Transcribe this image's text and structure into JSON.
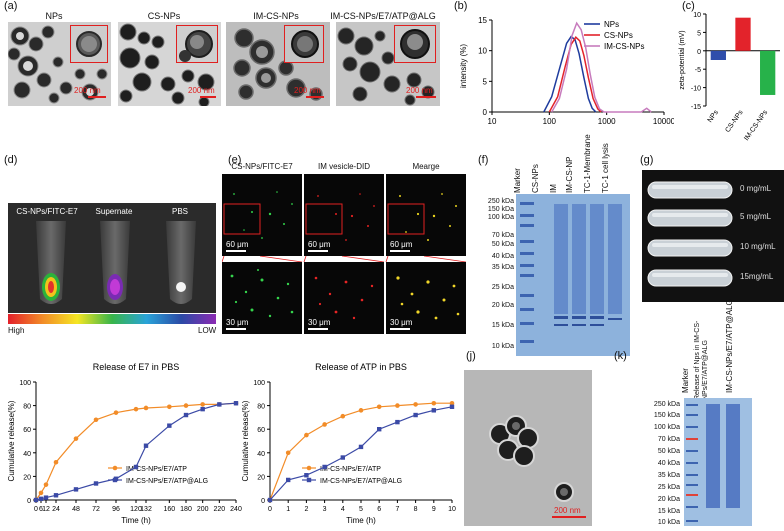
{
  "panels": {
    "a": {
      "label": "(a)",
      "titles": [
        "NPs",
        "CS-NPs",
        "IM-CS-NPs",
        "IM-CS-NPs/E7/ATP@ALG"
      ],
      "scale": "200 nm"
    },
    "b": {
      "label": "(b)"
    },
    "c": {
      "label": "(c)"
    },
    "d": {
      "label": "(d)",
      "titles": [
        "CS-NPs/FITC-E7",
        "Supernate",
        "PBS"
      ],
      "high": "High",
      "low": "LOW"
    },
    "e": {
      "label": "(e)",
      "titles": [
        "CS-NPs/FITC-E7",
        "IM vesicle-DID",
        "Mearge"
      ],
      "scale_top": "60 μm",
      "scale_bottom": "30 μm"
    },
    "f": {
      "label": "(f)",
      "lanes": [
        "Marker",
        "CS-NPs",
        "IM",
        "IM-CS-NP",
        "TC-1-Membrane",
        "TC-1 cell lysis"
      ],
      "kda": [
        "250 kDa",
        "150 kDa",
        "100 kDa",
        "70 kDa",
        "50 kDa",
        "40 kDa",
        "35 kDa",
        "25 kDa",
        "20 kDa",
        "15 kDa",
        "10 kDa"
      ]
    },
    "g": {
      "label": "(g)",
      "concentrations": [
        "0 mg/mL",
        "5 mg/mL",
        "10 mg/mL",
        "15mg/mL"
      ]
    },
    "j": {
      "label": "(j)",
      "scale": "200 nm"
    },
    "k": {
      "label": "(k)",
      "lanes": [
        "Marker",
        "Release of Nps in IM-CS-NPs/E7/ATP@ALG",
        "IM-CS-NPs/E7/ATP@ALG"
      ],
      "kda": [
        "250 kDa",
        "150 kDa",
        "100 kDa",
        "70 kDa",
        "50 kDa",
        "40 kDa",
        "35 kDa",
        "25 kDa",
        "20 kDa",
        "15 kDa",
        "10 kDa"
      ]
    }
  },
  "chart_data": [
    {
      "id": "b",
      "panel_label": "(b)",
      "type": "line",
      "title": "",
      "xlabel": "",
      "ylabel": "intensity (%)",
      "xscale": "log",
      "xlim": [
        10,
        10000
      ],
      "ylim": [
        0,
        15
      ],
      "x_ticks": [
        10,
        100,
        1000,
        10000
      ],
      "x_tick_labels": [
        "10",
        "100",
        "1000",
        "10000"
      ],
      "y_ticks": [
        0,
        5,
        10,
        15
      ],
      "legend": [
        "NPs",
        "CS-NPs",
        "IM-CS-NPs"
      ],
      "legend_position": "top-right",
      "series": [
        {
          "name": "NPs",
          "color": "#1f3c9e",
          "x": [
            80,
            110,
            150,
            200,
            240,
            280,
            330,
            400,
            480,
            560,
            650
          ],
          "values": [
            0,
            2.5,
            7.0,
            11.2,
            12.3,
            11.8,
            9.5,
            5.6,
            2.2,
            0.6,
            0
          ]
        },
        {
          "name": "CS-NPs",
          "color": "#e3232b",
          "x": [
            100,
            140,
            190,
            240,
            290,
            340,
            400,
            480,
            580,
            700,
            800
          ],
          "values": [
            0,
            2.5,
            7.5,
            11.0,
            12.2,
            11.6,
            9.2,
            5.6,
            2.2,
            0.5,
            0
          ]
        },
        {
          "name": "IM-CS-NPs",
          "color": "#c77bbd",
          "x": [
            110,
            150,
            200,
            250,
            300,
            360,
            430,
            520,
            620,
            750,
            900,
            4000,
            5000,
            6000
          ],
          "values": [
            0,
            2.2,
            7.0,
            12.5,
            14.5,
            13.4,
            10.5,
            6.0,
            2.4,
            0.5,
            0,
            0,
            0.6,
            0
          ]
        }
      ]
    },
    {
      "id": "c",
      "panel_label": "(c)",
      "type": "bar",
      "title": "",
      "xlabel": "",
      "ylabel": "zeta-potential (mV)",
      "ylim": [
        -15,
        10
      ],
      "y_ticks": [
        -15,
        -10,
        -5,
        0,
        5,
        10
      ],
      "categories": [
        "NPs",
        "CS-NPs",
        "IM-CS-NPs"
      ],
      "values": [
        -2.5,
        9.0,
        -12.0
      ],
      "colors": [
        "#2f4eab",
        "#e3232b",
        "#27b24a"
      ]
    },
    {
      "id": "h",
      "panel_label": "(h)",
      "type": "line",
      "title": "Release of E7 in PBS",
      "xlabel": "Time (h)",
      "ylabel": "Cumulative release(%)",
      "xlim": [
        0,
        240
      ],
      "ylim": [
        0,
        100
      ],
      "x_ticks": [
        0,
        6,
        12,
        24,
        48,
        72,
        96,
        120,
        132,
        160,
        180,
        200,
        220,
        240
      ],
      "x_tick_labels": [
        "0",
        "6",
        "12",
        "24",
        "48",
        "72",
        "96",
        "120",
        "132",
        "160",
        "180",
        "200",
        "220",
        "240"
      ],
      "y_ticks": [
        0,
        20,
        40,
        60,
        80,
        100
      ],
      "legend": [
        "IM-CS-NPs/E7/ATP",
        "IM-CS-NPs/E7/ATP@ALG"
      ],
      "legend_position": "bottom-left",
      "series": [
        {
          "name": "IM-CS-NPs/E7/ATP",
          "color": "#f28c28",
          "marker": "circle",
          "x": [
            0,
            6,
            12,
            24,
            48,
            72,
            96,
            120,
            132,
            160,
            180,
            200,
            220,
            240
          ],
          "values": [
            0,
            6,
            13,
            32,
            52,
            68,
            74,
            77,
            78,
            79,
            80,
            81,
            81,
            82
          ]
        },
        {
          "name": "IM-CS-NPs/E7/ATP@ALG",
          "color": "#3b4aa6",
          "marker": "square",
          "x": [
            0,
            6,
            12,
            24,
            48,
            72,
            96,
            120,
            132,
            160,
            180,
            200,
            220,
            240
          ],
          "values": [
            0,
            1,
            2,
            4,
            9,
            14,
            18,
            28,
            46,
            63,
            72,
            77,
            81,
            82
          ]
        }
      ]
    },
    {
      "id": "i",
      "panel_label": "(i)",
      "type": "line",
      "title": "Release of ATP in PBS",
      "xlabel": "Time (h)",
      "ylabel": "Cumulative release(%)",
      "xlim": [
        0,
        10
      ],
      "ylim": [
        0,
        100
      ],
      "x_ticks": [
        0,
        1,
        2,
        3,
        4,
        5,
        6,
        7,
        8,
        9,
        10
      ],
      "x_tick_labels": [
        "0",
        "1",
        "2",
        "3",
        "4",
        "5",
        "6",
        "7",
        "8",
        "9",
        "10"
      ],
      "y_ticks": [
        0,
        20,
        40,
        60,
        80,
        100
      ],
      "legend": [
        "IM-CS-NPs/E7/ATP",
        "IM-CS-NPs/E7/ATP@ALG"
      ],
      "legend_position": "bottom-right",
      "series": [
        {
          "name": "IM-CS-NPs/E7/ATP",
          "color": "#f28c28",
          "marker": "circle",
          "x": [
            0,
            1,
            2,
            3,
            4,
            5,
            6,
            7,
            8,
            9,
            10
          ],
          "values": [
            0,
            40,
            55,
            64,
            71,
            76,
            79,
            80,
            81,
            82,
            82
          ]
        },
        {
          "name": "IM-CS-NPs/E7/ATP@ALG",
          "color": "#3b4aa6",
          "marker": "square",
          "x": [
            0,
            1,
            2,
            3,
            4,
            5,
            6,
            7,
            8,
            9,
            10
          ],
          "values": [
            0,
            17,
            21,
            28,
            36,
            45,
            60,
            66,
            72,
            76,
            79
          ]
        }
      ]
    }
  ]
}
